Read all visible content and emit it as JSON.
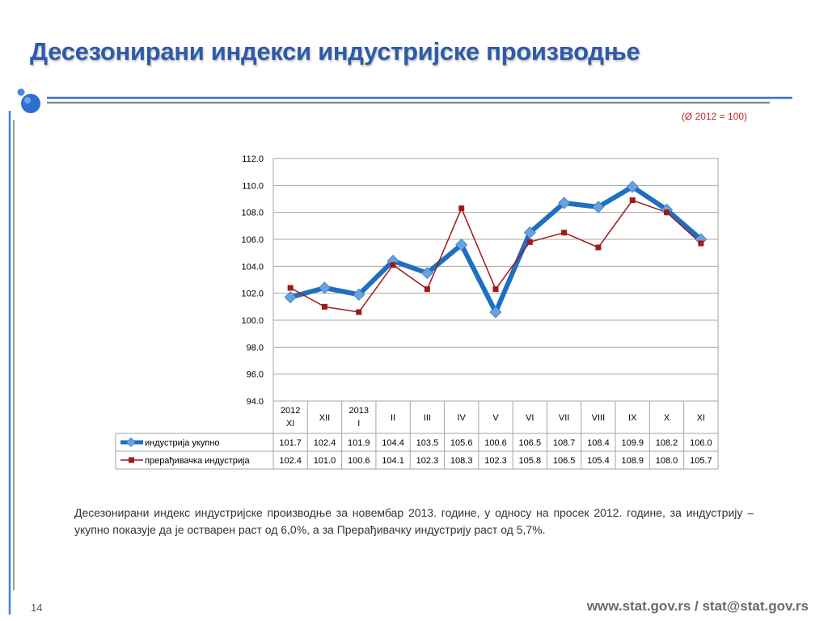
{
  "slide": {
    "title": "Десезонирани индекси индустријске производње",
    "base_note": "(Ø 2012 = 100)",
    "description": "Десезонирани индекс индустријске производње за новембар 2013. године, у односу на просек 2012. године, за индустрију – укупно показује да је остварен раст од 6,0%, а за Прерађивачку индустрију раст од 5,7%.",
    "page_number": "14",
    "footer": "www.stat.gov.rs / stat@stat.gov.rs",
    "colors": {
      "title": "#2e5aa8",
      "accent": "#3b6fc4",
      "series_1": "#1f6fc1",
      "series_1_marker": "#6aa0dc",
      "series_2": "#9e1b1b",
      "note": "#c0262c"
    }
  },
  "chart_data": {
    "type": "line",
    "categories": [
      [
        "2012",
        "XI"
      ],
      [
        "XII"
      ],
      [
        "2013",
        "I"
      ],
      [
        "II"
      ],
      [
        "III"
      ],
      [
        "IV"
      ],
      [
        "V"
      ],
      [
        "VI"
      ],
      [
        "VII"
      ],
      [
        "VIII"
      ],
      [
        "IX"
      ],
      [
        "X"
      ],
      [
        "XI"
      ]
    ],
    "series": [
      {
        "name": "индустрија укупно",
        "values": [
          101.7,
          102.4,
          101.9,
          104.4,
          103.5,
          105.6,
          100.6,
          106.5,
          108.7,
          108.4,
          109.9,
          108.2,
          106.0
        ]
      },
      {
        "name": "прерађивачка индустрија",
        "values": [
          102.4,
          101.0,
          100.6,
          104.1,
          102.3,
          108.3,
          102.3,
          105.8,
          106.5,
          105.4,
          108.9,
          108.0,
          105.7
        ]
      }
    ],
    "ylim": [
      94.0,
      112.0
    ],
    "yticks": [
      "112.0",
      "110.0",
      "108.0",
      "106.0",
      "104.0",
      "102.0",
      "100.0",
      "98.0",
      "96.0",
      "94.0"
    ],
    "value_labels": [
      [
        "101.7",
        "102.4",
        "101.9",
        "104.4",
        "103.5",
        "105.6",
        "100.6",
        "106.5",
        "108.7",
        "108.4",
        "109.9",
        "108.2",
        "106.0"
      ],
      [
        "102.4",
        "101.0",
        "100.6",
        "104.1",
        "102.3",
        "108.3",
        "102.3",
        "105.8",
        "106.5",
        "105.4",
        "108.9",
        "108.0",
        "105.7"
      ]
    ],
    "grid": true,
    "legend": "data-table"
  }
}
